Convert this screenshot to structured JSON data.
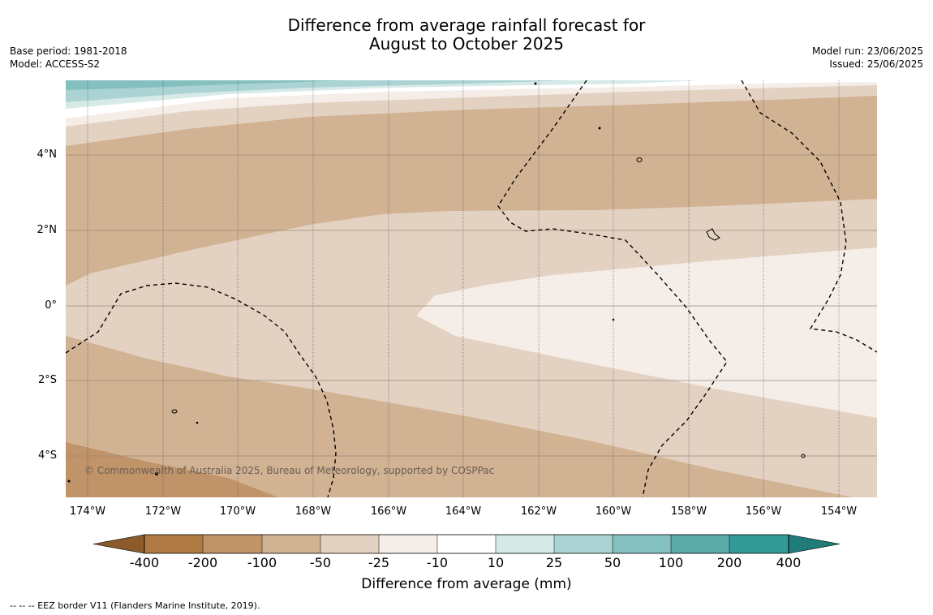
{
  "title_line1": "Difference from average rainfall forecast for",
  "title_line2": "August to October 2025",
  "meta_left": {
    "base_period": "Base period: 1981-2018",
    "model": "Model: ACCESS-S2"
  },
  "meta_right": {
    "model_run": "Model run: 23/06/2025",
    "issued": "Issued: 25/06/2025"
  },
  "latitude_labels": [
    "4°N",
    "2°N",
    "0°",
    "2°S",
    "4°S"
  ],
  "longitude_labels": [
    "174°W",
    "172°W",
    "170°W",
    "168°W",
    "166°W",
    "164°W",
    "162°W",
    "160°W",
    "158°W",
    "156°W",
    "154°W"
  ],
  "copyright": "© Commonwealth of Australia 2025, Bureau of Meteorology, supported by COSPPac",
  "colorbar": {
    "title": "Difference from average (mm)",
    "ticks": [
      "-400",
      "-200",
      "-100",
      "-50",
      "-25",
      "-10",
      "10",
      "25",
      "50",
      "100",
      "200",
      "400"
    ],
    "colors": {
      "below_-400": "#8c5a2b",
      "-400_to_-200": "#b07a45",
      "-200_to_-100": "#c09369",
      "-100_to_-50": "#d1b293",
      "-50_to_-25": "#e3d1c1",
      "-25_to_-10": "#f5ede8",
      "-10_to_10": "#ffffff",
      "10_to_25": "#d6eae8",
      "25_to_50": "#abd3d3",
      "50_to_100": "#84c0bf",
      "100_to_200": "#5aaaa8",
      "200_to_400": "#349a96",
      "above_400": "#1f7c78"
    }
  },
  "footer": "--  --  -- EEZ border V11 (Flanders Marine Institute, 2019)."
}
